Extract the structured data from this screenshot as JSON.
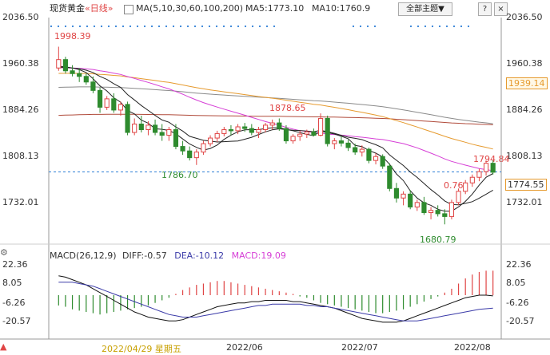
{
  "header": {
    "title": "现货黄金",
    "timeframe": "«日线»",
    "ma_label": "MA(5,10,30,60,100,200)",
    "ma5": "MA5:1773.10",
    "ma10": "MA10:1760.9",
    "topic_button": "全部主题▼",
    "btn_question": "?",
    "btn_close": "×"
  },
  "price_axis": {
    "right_ticks": [
      "2036.50",
      "1960.38",
      "1884.26",
      "1808.13",
      "1732.01"
    ],
    "left_ticks": [
      "2036.50",
      "1960.38",
      "1884.26",
      "1808.13",
      "1732.01"
    ],
    "ma_tag": "1939.14",
    "last_tag": "1774.55"
  },
  "annotations": {
    "high1": "1998.39",
    "high2": "1878.65",
    "low1": "1786.70",
    "low2": "1680.79",
    "recent_high": "1794.84",
    "recent_low": "0.76"
  },
  "macd": {
    "header_label": "MACD(26,12,9)",
    "diff": "DIFF:-0.57",
    "dea": "DEA:-10.12",
    "macd": "MACD:19.09",
    "right_ticks": [
      "22.36",
      "8.05",
      "-6.26",
      "-20.57"
    ],
    "left_ticks": [
      "22.36",
      "8.05",
      "-6.26",
      "-20.57"
    ]
  },
  "dates": {
    "d1": "2022/04/29 星期五",
    "d2": "2022/06",
    "d3": "2022/07",
    "d4": "2022/08"
  },
  "colors": {
    "up": "#e04545",
    "down": "#2e8b2e",
    "ma_black": "#222222",
    "ma_magenta": "#d63fd6",
    "ma_orange": "#e69a2e",
    "ma_brown": "#b04a3a",
    "ma_gray": "#8a8a8a",
    "dashed": "#2f7fd6"
  },
  "chart_data": {
    "type": "candlestick",
    "title": "现货黄金",
    "ylim": [
      1660,
      2050
    ],
    "candles": [
      [
        1960,
        1998,
        1955,
        1975
      ],
      [
        1975,
        1980,
        1950,
        1955
      ],
      [
        1955,
        1965,
        1945,
        1950
      ],
      [
        1950,
        1960,
        1935,
        1945
      ],
      [
        1945,
        1950,
        1930,
        1935
      ],
      [
        1935,
        1945,
        1915,
        1920
      ],
      [
        1920,
        1925,
        1880,
        1890
      ],
      [
        1890,
        1910,
        1885,
        1905
      ],
      [
        1905,
        1915,
        1880,
        1885
      ],
      [
        1885,
        1900,
        1875,
        1895
      ],
      [
        1895,
        1900,
        1840,
        1845
      ],
      [
        1845,
        1870,
        1840,
        1860
      ],
      [
        1860,
        1875,
        1845,
        1850
      ],
      [
        1850,
        1865,
        1840,
        1858
      ],
      [
        1858,
        1868,
        1840,
        1845
      ],
      [
        1845,
        1860,
        1830,
        1840
      ],
      [
        1840,
        1855,
        1830,
        1850
      ],
      [
        1850,
        1860,
        1815,
        1820
      ],
      [
        1820,
        1830,
        1805,
        1812
      ],
      [
        1812,
        1820,
        1795,
        1800
      ],
      [
        1800,
        1815,
        1787,
        1810
      ],
      [
        1810,
        1830,
        1805,
        1825
      ],
      [
        1825,
        1840,
        1820,
        1835
      ],
      [
        1835,
        1848,
        1828,
        1843
      ],
      [
        1843,
        1855,
        1838,
        1850
      ],
      [
        1850,
        1858,
        1840,
        1848
      ],
      [
        1848,
        1860,
        1842,
        1855
      ],
      [
        1855,
        1862,
        1846,
        1852
      ],
      [
        1852,
        1860,
        1840,
        1845
      ],
      [
        1845,
        1855,
        1835,
        1850
      ],
      [
        1850,
        1862,
        1845,
        1858
      ],
      [
        1858,
        1868,
        1850,
        1862
      ],
      [
        1862,
        1870,
        1848,
        1852
      ],
      [
        1852,
        1858,
        1825,
        1830
      ],
      [
        1830,
        1842,
        1825,
        1838
      ],
      [
        1838,
        1848,
        1830,
        1842
      ],
      [
        1842,
        1850,
        1835,
        1846
      ],
      [
        1846,
        1852,
        1838,
        1840
      ],
      [
        1840,
        1879,
        1838,
        1870
      ],
      [
        1870,
        1875,
        1820,
        1825
      ],
      [
        1825,
        1835,
        1815,
        1830
      ],
      [
        1830,
        1838,
        1820,
        1826
      ],
      [
        1826,
        1832,
        1812,
        1818
      ],
      [
        1818,
        1825,
        1805,
        1810
      ],
      [
        1810,
        1822,
        1802,
        1815
      ],
      [
        1815,
        1818,
        1790,
        1795
      ],
      [
        1795,
        1808,
        1788,
        1802
      ],
      [
        1802,
        1806,
        1780,
        1785
      ],
      [
        1785,
        1790,
        1740,
        1745
      ],
      [
        1745,
        1755,
        1720,
        1728
      ],
      [
        1728,
        1740,
        1715,
        1735
      ],
      [
        1735,
        1742,
        1708,
        1712
      ],
      [
        1712,
        1725,
        1705,
        1720
      ],
      [
        1720,
        1730,
        1698,
        1702
      ],
      [
        1702,
        1712,
        1690,
        1706
      ],
      [
        1706,
        1715,
        1695,
        1700
      ],
      [
        1700,
        1708,
        1681,
        1695
      ],
      [
        1695,
        1725,
        1690,
        1720
      ],
      [
        1720,
        1745,
        1715,
        1740
      ],
      [
        1740,
        1760,
        1735,
        1755
      ],
      [
        1755,
        1770,
        1748,
        1765
      ],
      [
        1765,
        1780,
        1758,
        1775
      ],
      [
        1775,
        1795,
        1768,
        1790
      ],
      [
        1790,
        1795,
        1770,
        1774
      ]
    ],
    "macd_hist": [
      -8,
      -9,
      -11,
      -12,
      -13,
      -14,
      -15,
      -14,
      -13,
      -12,
      -11,
      -10,
      -9,
      -8,
      -6,
      -4,
      -2,
      1,
      4,
      6,
      8,
      9,
      10,
      11,
      11,
      10,
      9,
      8,
      7,
      6,
      5,
      4,
      3,
      2,
      1,
      -1,
      -2,
      -4,
      -6,
      -7,
      -8,
      -9,
      -10,
      -11,
      -12,
      -13,
      -14,
      -14,
      -13,
      -12,
      -11,
      -9,
      -7,
      -5,
      -3,
      -1,
      2,
      5,
      9,
      13,
      16,
      18,
      19,
      19
    ],
    "macd_diff": [
      15,
      14,
      12,
      10,
      8,
      5,
      2,
      -1,
      -4,
      -7,
      -10,
      -13,
      -15,
      -17,
      -18,
      -19,
      -20,
      -20,
      -19,
      -17,
      -15,
      -13,
      -11,
      -9,
      -8,
      -7,
      -6,
      -6,
      -5,
      -5,
      -4,
      -4,
      -4,
      -4,
      -5,
      -5,
      -6,
      -7,
      -8,
      -9,
      -10,
      -12,
      -14,
      -16,
      -18,
      -19,
      -20,
      -21,
      -21,
      -21,
      -20,
      -18,
      -16,
      -14,
      -12,
      -10,
      -8,
      -6,
      -4,
      -2,
      -1,
      0,
      0,
      -0.57
    ],
    "macd_dea": [
      10,
      10,
      10,
      9,
      8,
      7,
      5,
      3,
      1,
      -1,
      -3,
      -5,
      -7,
      -9,
      -11,
      -13,
      -15,
      -16,
      -17,
      -17,
      -17,
      -16,
      -15,
      -14,
      -13,
      -12,
      -11,
      -10,
      -9,
      -8,
      -8,
      -7,
      -7,
      -7,
      -7,
      -7,
      -8,
      -8,
      -9,
      -9,
      -10,
      -11,
      -12,
      -13,
      -14,
      -15,
      -16,
      -17,
      -18,
      -19,
      -20,
      -20,
      -20,
      -19,
      -18,
      -17,
      -16,
      -15,
      -14,
      -13,
      -12,
      -11,
      -10.5,
      -10.12
    ]
  }
}
